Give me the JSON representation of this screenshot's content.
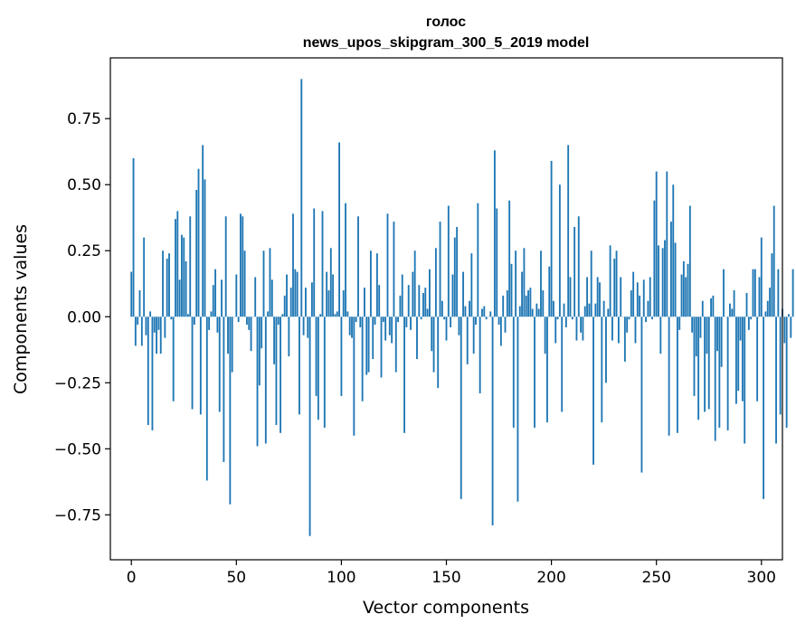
{
  "chart_data": {
    "type": "bar",
    "title": "голос",
    "subtitle": "news_upos_skipgram_300_5_2019 model",
    "xlabel": "Vector components",
    "ylabel": "Components values",
    "xlim": [
      -10,
      310
    ],
    "ylim": [
      -0.92,
      0.98
    ],
    "xticks": [
      0,
      50,
      100,
      150,
      200,
      250,
      300
    ],
    "xtick_labels": [
      "0",
      "50",
      "100",
      "150",
      "200",
      "250",
      "300"
    ],
    "yticks": [
      -0.75,
      -0.5,
      -0.25,
      0.0,
      0.25,
      0.5,
      0.75
    ],
    "ytick_labels": [
      "−0.75",
      "−0.50",
      "−0.25",
      "0.00",
      "0.25",
      "0.50",
      "0.75"
    ],
    "grid": false,
    "bar_color": "#1f77b4",
    "values": [
      0.17,
      0.6,
      -0.11,
      -0.03,
      0.1,
      -0.11,
      0.3,
      -0.07,
      -0.41,
      0.02,
      -0.43,
      -0.06,
      -0.14,
      -0.05,
      -0.14,
      0.25,
      -0.08,
      0.22,
      0.24,
      -0.01,
      -0.32,
      0.37,
      0.4,
      0.14,
      0.31,
      0.3,
      0.21,
      0.01,
      0.38,
      -0.35,
      -0.03,
      0.48,
      0.56,
      -0.37,
      0.65,
      0.52,
      -0.62,
      -0.05,
      0.02,
      0.12,
      0.18,
      -0.06,
      -0.36,
      0.14,
      -0.55,
      0.38,
      -0.14,
      -0.71,
      -0.21,
      0.0,
      0.16,
      -0.02,
      0.39,
      0.38,
      0.25,
      -0.03,
      -0.05,
      -0.13,
      0.0,
      0.15,
      -0.49,
      -0.26,
      -0.12,
      0.25,
      -0.48,
      0.02,
      0.26,
      0.14,
      -0.18,
      -0.41,
      -0.03,
      -0.44,
      0.01,
      0.08,
      0.16,
      -0.15,
      0.11,
      0.39,
      0.18,
      0.17,
      -0.37,
      0.9,
      -0.07,
      0.11,
      -0.08,
      -0.83,
      0.13,
      0.41,
      -0.3,
      -0.39,
      0.01,
      0.4,
      -0.42,
      0.17,
      0.1,
      0.26,
      0.16,
      0.01,
      0.02,
      0.66,
      -0.3,
      0.1,
      0.43,
      0.02,
      -0.07,
      -0.08,
      -0.45,
      -0.02,
      0.38,
      -0.04,
      -0.32,
      0.11,
      -0.22,
      -0.21,
      0.25,
      -0.16,
      -0.03,
      0.24,
      0.12,
      -0.23,
      -0.02,
      -0.09,
      0.39,
      -0.07,
      -0.1,
      0.36,
      -0.21,
      -0.02,
      0.08,
      0.16,
      -0.44,
      -0.04,
      0.12,
      -0.05,
      0.17,
      0.25,
      -0.16,
      0.12,
      -0.01,
      0.09,
      0.11,
      0.03,
      0.18,
      -0.13,
      -0.21,
      0.26,
      -0.27,
      0.36,
      0.06,
      -0.01,
      -0.09,
      0.42,
      -0.04,
      0.16,
      0.3,
      0.34,
      -0.07,
      -0.69,
      0.17,
      0.04,
      -0.18,
      0.06,
      0.24,
      -0.14,
      -0.03,
      0.43,
      -0.29,
      0.03,
      0.04,
      -0.01,
      0.0,
      0.02,
      -0.79,
      0.63,
      0.41,
      -0.03,
      -0.11,
      0.08,
      -0.06,
      0.1,
      0.44,
      0.2,
      -0.42,
      0.25,
      -0.7,
      0.04,
      0.17,
      0.26,
      0.08,
      0.1,
      0.11,
      0.03,
      -0.42,
      0.05,
      0.03,
      0.25,
      0.1,
      -0.14,
      -0.4,
      0.19,
      0.59,
      0.06,
      -0.1,
      -0.01,
      0.5,
      -0.36,
      0.05,
      -0.04,
      0.65,
      0.15,
      -0.01,
      0.34,
      -0.09,
      0.38,
      -0.06,
      -0.09,
      0.04,
      0.15,
      0.05,
      0.25,
      -0.56,
      0.05,
      0.15,
      0.13,
      -0.4,
      0.06,
      -0.25,
      0.03,
      0.27,
      -0.09,
      0.22,
      0.25,
      -0.1,
      0.15,
      0.0,
      -0.17,
      -0.06,
      -0.01,
      0.1,
      0.17,
      -0.1,
      0.13,
      0.08,
      -0.59,
      0.14,
      -0.02,
      0.06,
      0.15,
      -0.01,
      0.44,
      0.55,
      0.27,
      -0.14,
      0.26,
      0.29,
      0.55,
      -0.45,
      0.36,
      0.5,
      0.28,
      -0.44,
      -0.05,
      0.16,
      0.21,
      0.15,
      0.2,
      0.42,
      -0.06,
      -0.3,
      -0.15,
      -0.39,
      -0.08,
      0.06,
      -0.36,
      -0.14,
      -0.35,
      0.07,
      0.08,
      -0.47,
      -0.13,
      -0.42,
      -0.19,
      0.18,
      0.0,
      -0.43,
      0.05,
      0.03,
      0.1,
      -0.33,
      -0.28,
      -0.09,
      -0.32,
      -0.48,
      0.09,
      -0.05,
      -0.01,
      0.18,
      0.18,
      -0.32,
      0.15,
      0.3,
      -0.69,
      0.02,
      0.06,
      0.11,
      0.24,
      0.42,
      -0.48,
      0.18,
      -0.37,
      0.03,
      -0.1,
      -0.42,
      0.01,
      -0.08,
      0.18
    ]
  }
}
